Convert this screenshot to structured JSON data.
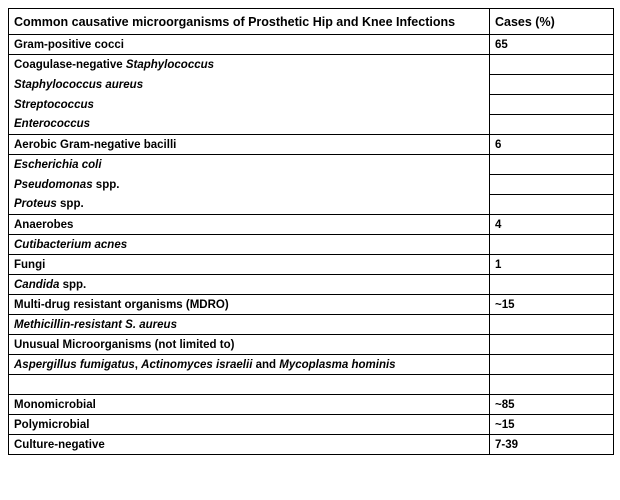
{
  "table": {
    "header": {
      "title": "Common causative microorganisms of Prosthetic Hip and Knee Infections",
      "cases": "Cases (%)"
    },
    "rows": [
      {
        "label": "Gram-positive cocci",
        "cases": "65"
      },
      {
        "label_plain": "Coagulase-negative ",
        "label_italic": "Staphylococcus",
        "cases": ""
      },
      {
        "label_italic": "Staphylococcus aureus",
        "cases": ""
      },
      {
        "label_italic": "Streptococcus",
        "cases": ""
      },
      {
        "label_italic": "Enterococcus",
        "cases": ""
      },
      {
        "label": "Aerobic Gram-negative bacilli",
        "cases": "6"
      },
      {
        "label_italic": "Escherichia coli",
        "cases": ""
      },
      {
        "label_italic": "Pseudomonas",
        "label_plain": " spp.",
        "cases": ""
      },
      {
        "label_italic": "Proteus",
        "label_plain": " spp.",
        "cases": ""
      },
      {
        "label": "Anaerobes",
        "cases": "4"
      },
      {
        "label_italic": "Cutibacterium acnes",
        "cases": ""
      },
      {
        "label": "Fungi",
        "cases": "1"
      },
      {
        "label_italic": "Candida",
        "label_plain": " spp.",
        "cases": ""
      },
      {
        "label": "Multi-drug resistant organisms (MDRO)",
        "cases": "~15"
      },
      {
        "label_italic": "Methicillin-resistant S. aureus",
        "cases": ""
      },
      {
        "label": "Unusual Microorganisms (not limited to)",
        "cases": ""
      },
      {
        "italic_1": "Aspergillus fumigatus",
        "plain_1": ", ",
        "italic_2": "Actinomyces israelii",
        "plain_2": " and ",
        "italic_3": "Mycoplasma hominis",
        "cases": ""
      },
      {
        "label": "",
        "cases": ""
      },
      {
        "label": "Monomicrobial",
        "cases": "~85"
      },
      {
        "label": "Polymicrobial",
        "cases": "~15"
      },
      {
        "label": "Culture-negative",
        "cases": "7-39"
      }
    ]
  }
}
